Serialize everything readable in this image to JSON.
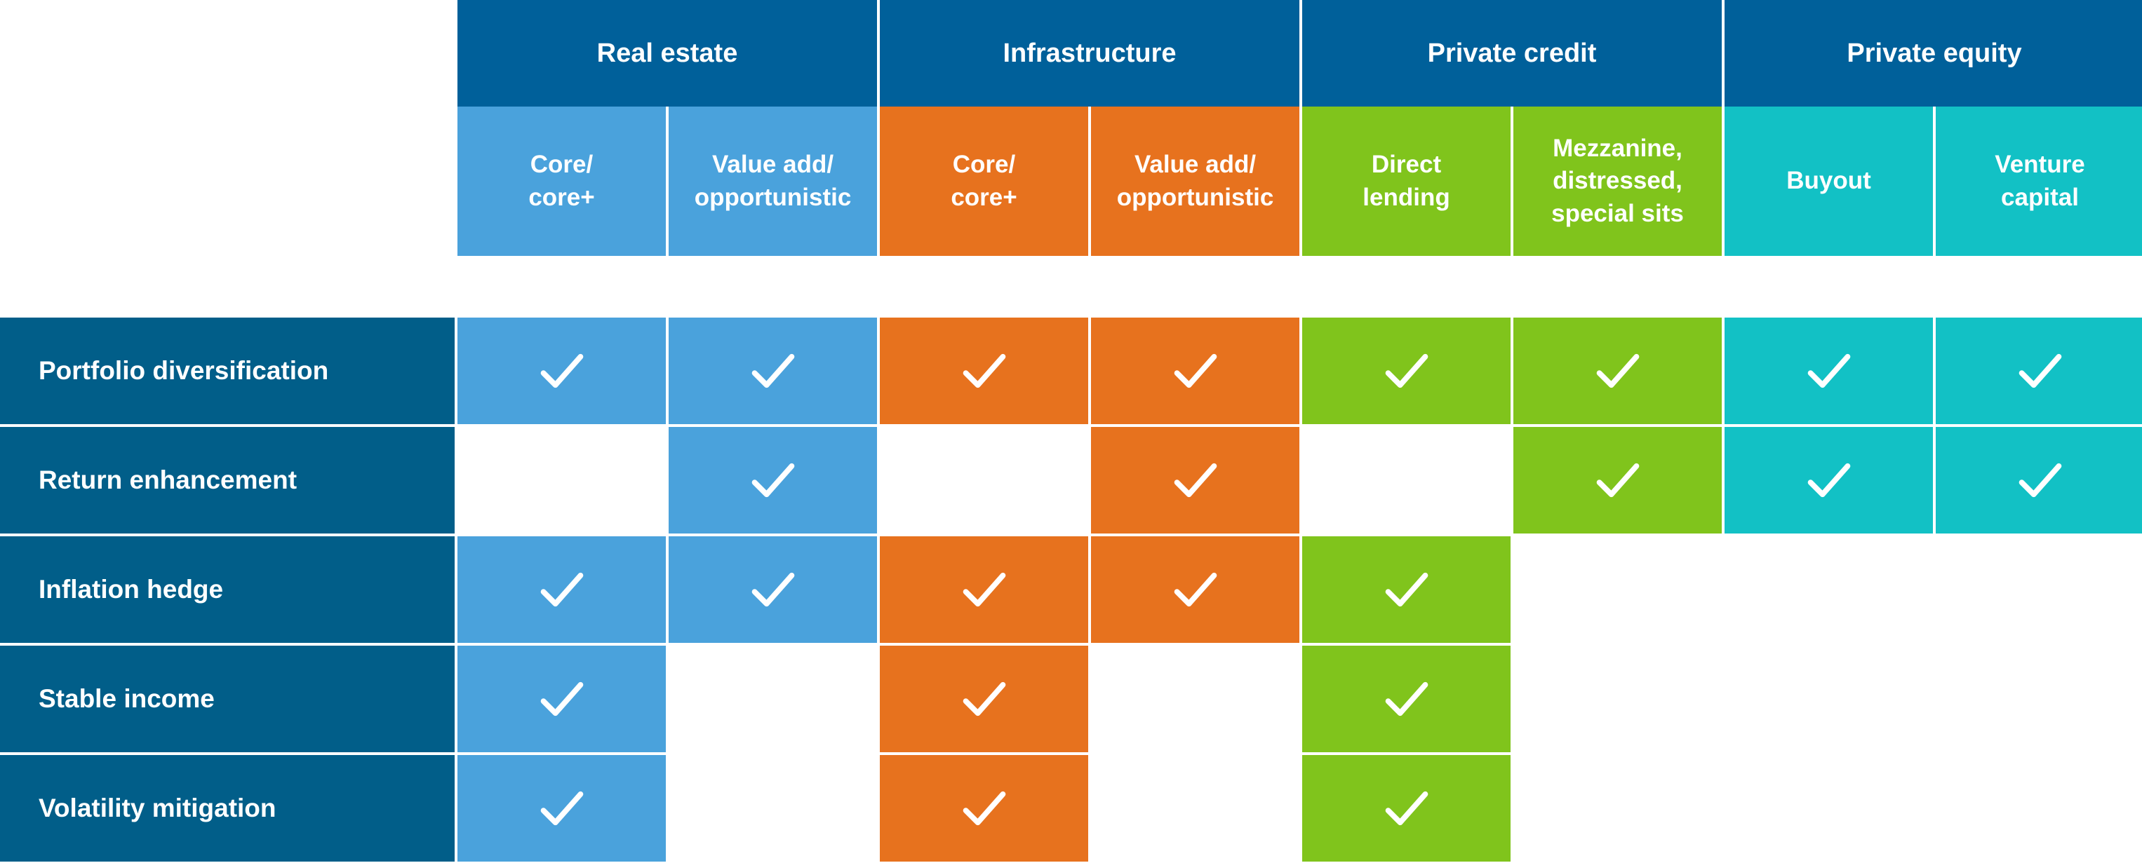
{
  "chart_data": {
    "type": "table",
    "description": "Matrix of portfolio benefits by alternative asset class, white check marks on colored cells",
    "column_groups": [
      {
        "label": "Real estate",
        "color": "#4AA2DC",
        "subcolumns": [
          "Core/\ncore+",
          "Value add/\nopportunistic"
        ]
      },
      {
        "label": "Infrastructure",
        "color": "#E7721E",
        "subcolumns": [
          "Core/\ncore+",
          "Value add/\nopportunistic"
        ]
      },
      {
        "label": "Private credit",
        "color": "#80C41C",
        "subcolumns": [
          "Direct\nlending",
          "Mezzanine,\ndistressed,\nspecial sits"
        ]
      },
      {
        "label": "Private equity",
        "color": "#12C1C5",
        "subcolumns": [
          "Buyout",
          "Venture\ncapital"
        ]
      }
    ],
    "rows": [
      {
        "label": "Portfolio diversification",
        "checks": [
          1,
          1,
          1,
          1,
          1,
          1,
          1,
          1
        ]
      },
      {
        "label": "Return enhancement",
        "checks": [
          0,
          1,
          0,
          1,
          0,
          1,
          1,
          1
        ]
      },
      {
        "label": "Inflation hedge",
        "checks": [
          1,
          1,
          1,
          1,
          1,
          0,
          0,
          0
        ]
      },
      {
        "label": "Stable income",
        "checks": [
          1,
          0,
          1,
          0,
          1,
          0,
          0,
          0
        ]
      },
      {
        "label": "Volatility mitigation",
        "checks": [
          1,
          0,
          1,
          0,
          1,
          0,
          0,
          0
        ]
      }
    ],
    "check_glyph": "✓",
    "colors": {
      "group_header_bg": "#00609A",
      "row_label_bg": "#015E89",
      "cell_text": "#FFFFFF",
      "background": "#FFFFFF",
      "gridline": "#FFFFFF"
    },
    "grid": "white-gaps",
    "legend_position": "none"
  }
}
